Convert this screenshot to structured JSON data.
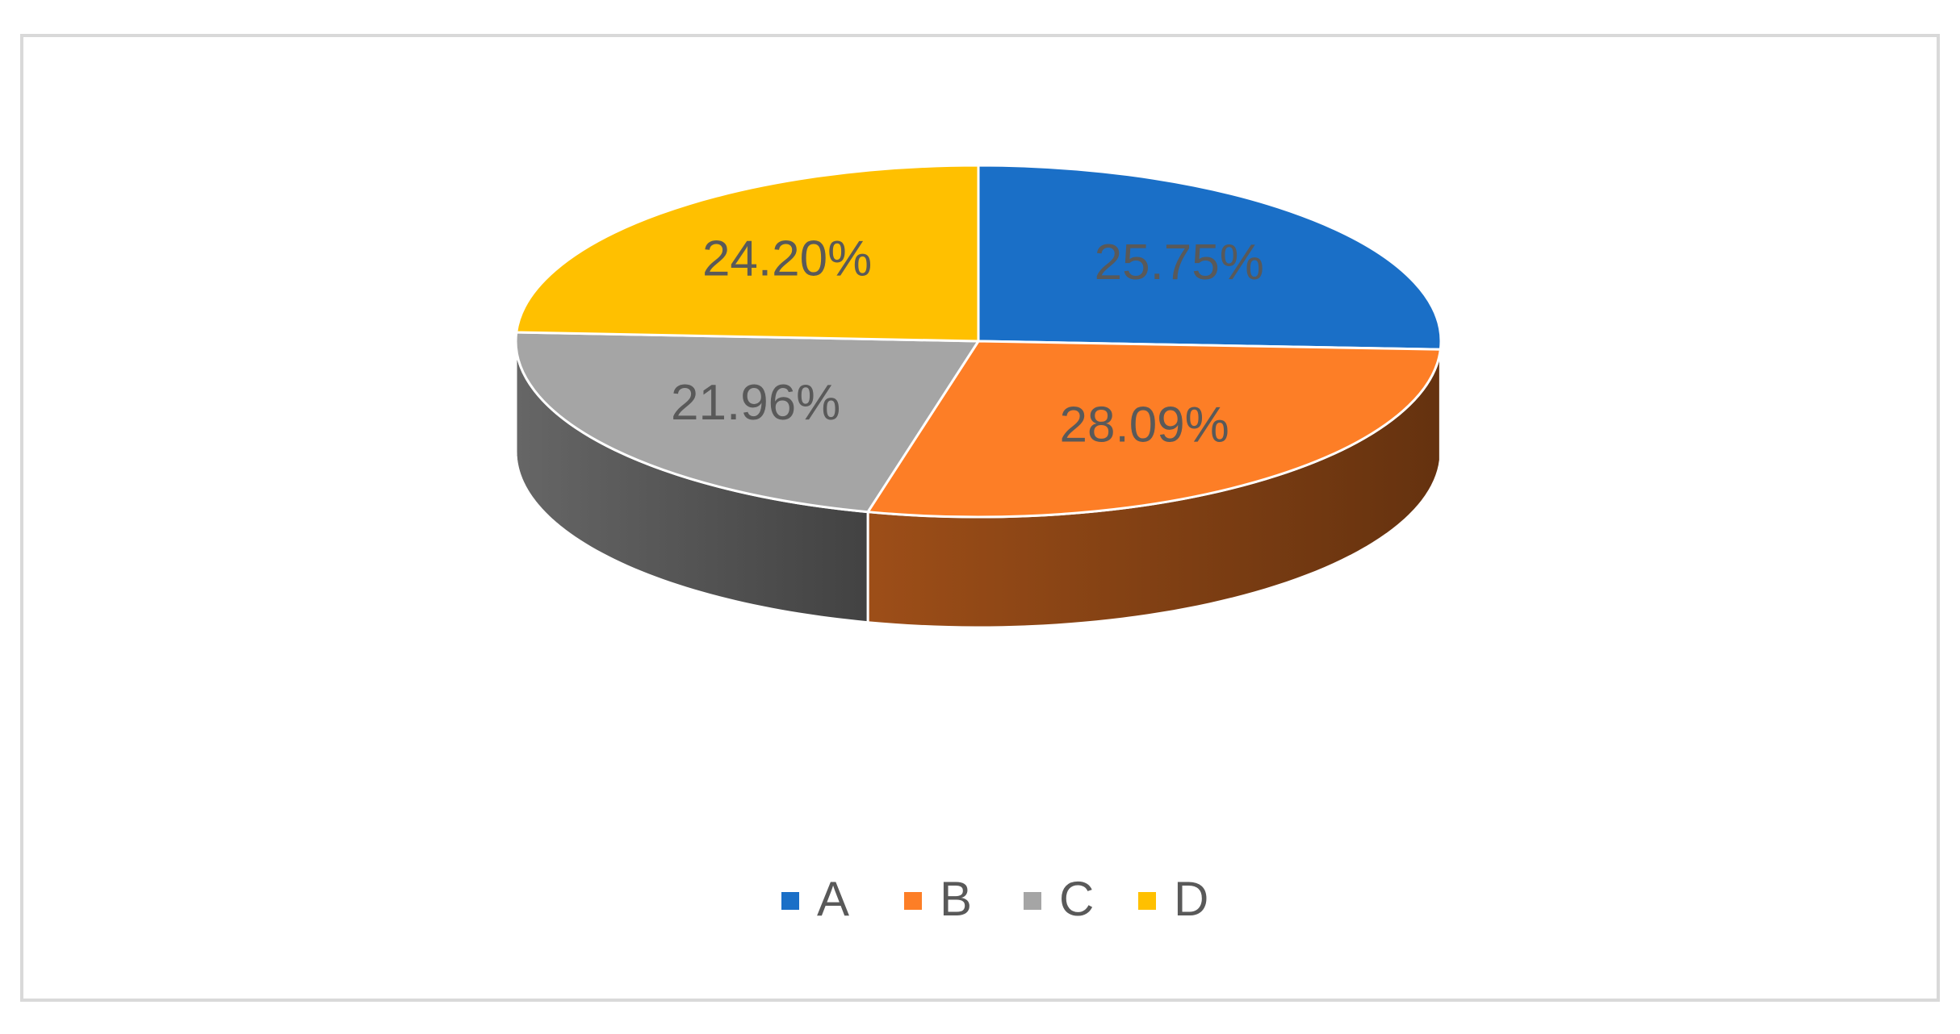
{
  "chart_data": {
    "type": "pie",
    "categories": [
      "A",
      "B",
      "C",
      "D"
    ],
    "values": [
      25.75,
      28.09,
      21.96,
      24.2
    ],
    "value_labels": [
      "25.75%",
      "28.09%",
      "21.96%",
      "24.20%"
    ],
    "colors": [
      "#1a6fc7",
      "#fd7e26",
      "#a5a5a5",
      "#ffc000"
    ],
    "legend": "bottom"
  }
}
